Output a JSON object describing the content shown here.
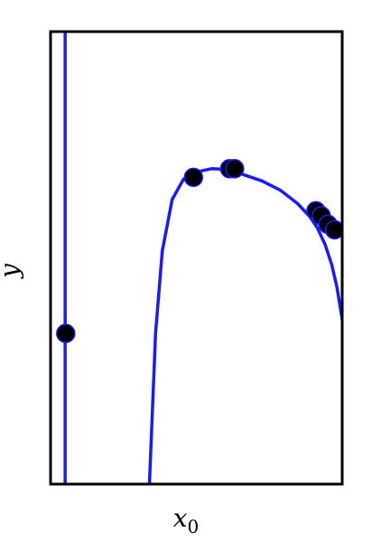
{
  "chart_data": {
    "type": "line",
    "title": "",
    "xlabel": "x_0",
    "ylabel": "y",
    "colors": {
      "line": "#1a1aff",
      "point": "#000000",
      "frame": "#000000"
    },
    "xlim": [
      0,
      100
    ],
    "ylim": [
      0,
      100
    ],
    "grid": false,
    "legend": "none",
    "series": [
      {
        "x": [
          5,
          5
        ],
        "y": [
          0,
          100
        ]
      },
      {
        "x": [
          33.9,
          36.0,
          38.3,
          41.7,
          45.6,
          49.4,
          55.2,
          61.1,
          67.0,
          72.5,
          78.9,
          84.7,
          88.9,
          91.5,
          94.1,
          96.4,
          98.2,
          100.0
        ],
        "y": [
          0.0,
          33.3,
          51.5,
          62.9,
          67.4,
          68.9,
          69.7,
          69.5,
          68.2,
          67.0,
          64.9,
          62.0,
          59.1,
          56.6,
          53.0,
          48.5,
          43.5,
          36.4
        ]
      }
    ],
    "points": [
      {
        "x": 5.2,
        "y": 33.3
      },
      {
        "x": 49.0,
        "y": 67.8
      },
      {
        "x": 61.4,
        "y": 69.7
      },
      {
        "x": 63.1,
        "y": 69.7
      },
      {
        "x": 91.0,
        "y": 60.4
      },
      {
        "x": 92.8,
        "y": 59.3
      },
      {
        "x": 95.1,
        "y": 57.4
      },
      {
        "x": 97.4,
        "y": 56.2
      }
    ]
  },
  "labels": {
    "y": "y",
    "x_base": "x",
    "x_sub": "0"
  }
}
